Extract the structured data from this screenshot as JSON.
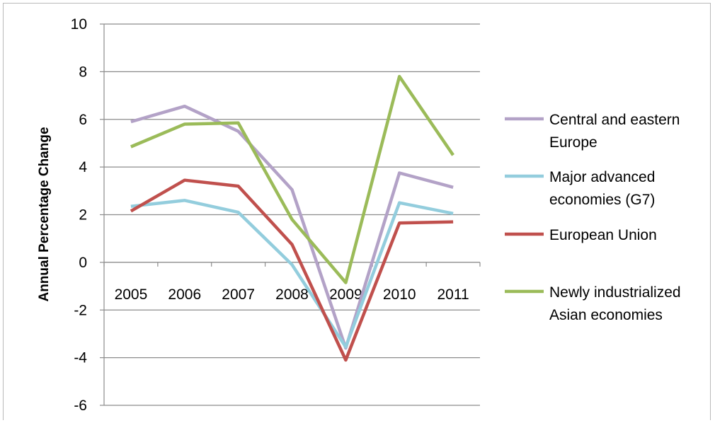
{
  "chart_data": {
    "type": "line",
    "title": "",
    "xlabel": "",
    "ylabel": "Annual Percentage Change",
    "ylim": [
      -6,
      10
    ],
    "yticks": [
      "10",
      "8",
      "6",
      "4",
      "2",
      "0",
      "-2",
      "-4",
      "-6"
    ],
    "ytick_values": [
      10,
      8,
      6,
      4,
      2,
      0,
      -2,
      -4,
      -6
    ],
    "categories": [
      "2005",
      "2006",
      "2007",
      "2008",
      "2009",
      "2010",
      "2011"
    ],
    "grid": true,
    "legend_position": "right",
    "series": [
      {
        "name": "Central and eastern Europe",
        "legend_lines": [
          "Central and eastern",
          "Europe"
        ],
        "color": "#b3a2c7",
        "values": [
          5.9,
          6.55,
          5.5,
          3.05,
          -3.6,
          3.75,
          3.15
        ]
      },
      {
        "name": "Major advanced economies (G7)",
        "legend_lines": [
          "Major advanced",
          "economies (G7)"
        ],
        "color": "#93cddd",
        "values": [
          2.35,
          2.6,
          2.1,
          -0.1,
          -3.55,
          2.5,
          2.05
        ]
      },
      {
        "name": "European Union",
        "legend_lines": [
          "European Union"
        ],
        "color": "#c0504d",
        "values": [
          2.15,
          3.45,
          3.2,
          0.75,
          -4.1,
          1.65,
          1.7
        ]
      },
      {
        "name": "Newly industrialized Asian economies",
        "legend_lines": [
          "Newly industrialized",
          "Asian economies"
        ],
        "color": "#9bbb59",
        "values": [
          4.85,
          5.8,
          5.85,
          1.8,
          -0.85,
          7.8,
          4.5
        ]
      }
    ]
  }
}
